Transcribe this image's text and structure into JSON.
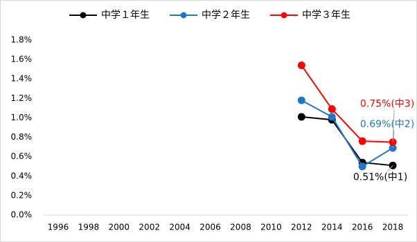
{
  "chart_data": {
    "type": "line",
    "categories": [
      "1996",
      "1998",
      "2000",
      "2002",
      "2004",
      "2006",
      "2008",
      "2010",
      "2012",
      "2014",
      "2016",
      "2018"
    ],
    "series": [
      {
        "name": "中学１年生",
        "color": "#000000",
        "values": [
          null,
          null,
          null,
          null,
          null,
          null,
          null,
          null,
          1.01,
          0.98,
          0.54,
          0.51
        ],
        "value_labels": [
          null,
          null,
          null,
          null,
          null,
          null,
          null,
          null,
          null,
          null,
          null,
          "0.51%(中1)"
        ]
      },
      {
        "name": "中学２年生",
        "color": "#1f78c1",
        "values": [
          null,
          null,
          null,
          null,
          null,
          null,
          null,
          null,
          1.18,
          1.01,
          0.5,
          0.69
        ],
        "value_labels": [
          null,
          null,
          null,
          null,
          null,
          null,
          null,
          null,
          null,
          null,
          null,
          "0.69%(中2)"
        ]
      },
      {
        "name": "中学３年生",
        "color": "#ff0000",
        "values": [
          null,
          null,
          null,
          null,
          null,
          null,
          null,
          null,
          1.54,
          1.09,
          0.76,
          0.75
        ],
        "value_labels": [
          null,
          null,
          null,
          null,
          null,
          null,
          null,
          null,
          null,
          null,
          null,
          "0.75%(中3)"
        ]
      }
    ],
    "ylim": [
      0,
      1.8
    ],
    "yticks": [
      {
        "value": 0,
        "label": "0.0%"
      },
      {
        "value": 0.2,
        "label": "0.2%"
      },
      {
        "value": 0.4,
        "label": "0.4%"
      },
      {
        "value": 0.6,
        "label": "0.6%"
      },
      {
        "value": 0.8,
        "label": "0.8%"
      },
      {
        "value": 1.0,
        "label": "1.0%"
      },
      {
        "value": 1.2,
        "label": "1.2%"
      },
      {
        "value": 1.4,
        "label": "1.4%"
      },
      {
        "value": 1.6,
        "label": "1.6%"
      },
      {
        "value": 1.8,
        "label": "1.8%"
      }
    ],
    "grid": false,
    "legend": "top"
  }
}
